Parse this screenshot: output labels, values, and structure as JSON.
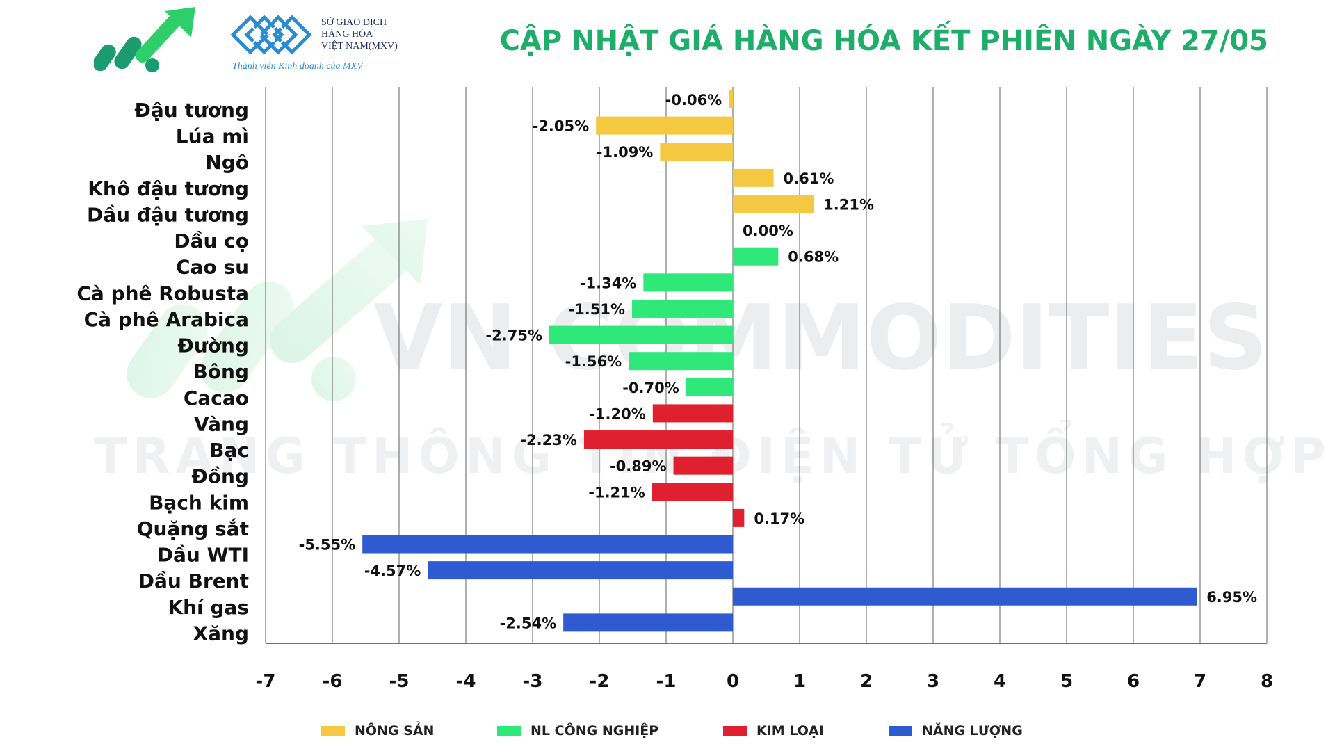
{
  "header": {
    "title": "CẬP NHẬT GIÁ HÀNG HÓA KẾT PHIÊN NGÀY 27/05",
    "partner_line1": "SỞ GIAO DỊCH",
    "partner_line2": "HÀNG HÓA",
    "partner_line3": "VIỆT NAM(MXV)",
    "partner_tagline": "Thành viên Kinh doanh của MXV",
    "brand_color": "#1fae6a"
  },
  "watermark": {
    "line1": "VN COMMODITIES",
    "line2": "TRANG THÔNG TIN ĐIỆN TỬ TỔNG HỢP"
  },
  "chart_data": {
    "type": "bar",
    "orientation": "horizontal",
    "xlim": [
      -7,
      8
    ],
    "x_ticks": [
      "-7",
      "-6",
      "-5",
      "-4",
      "-3",
      "-2",
      "-1",
      "0",
      "1",
      "2",
      "3",
      "4",
      "5",
      "6",
      "7",
      "8"
    ],
    "grid": true,
    "legend_position": "bottom",
    "categories": [
      "Đậu tương",
      "Lúa mì",
      "Ngô",
      "Khô đậu tương",
      "Dầu đậu tương",
      "Dầu cọ",
      "Cao su",
      "Cà phê Robusta",
      "Cà phê Arabica",
      "Đường",
      "Bông",
      "Cacao",
      "Vàng",
      "Bạc",
      "Đồng",
      "Bạch kim",
      "Quặng sắt",
      "Dầu WTI",
      "Dầu Brent",
      "Khí gas",
      "Xăng"
    ],
    "values": [
      -0.06,
      -2.05,
      -1.09,
      0.61,
      1.21,
      0.0,
      0.68,
      -1.34,
      -1.51,
      -2.75,
      -1.56,
      -0.7,
      -1.2,
      -2.23,
      -0.89,
      -1.21,
      0.17,
      -5.55,
      -4.57,
      6.95,
      -2.54
    ],
    "value_labels": [
      "-0.06%",
      "-2.05%",
      "-1.09%",
      "0.61%",
      "1.21%",
      "0.00%",
      "0.68%",
      "-1.34%",
      "-1.51%",
      "-2.75%",
      "-1.56%",
      "-0.70%",
      "-1.20%",
      "-2.23%",
      "-0.89%",
      "-1.21%",
      "0.17%",
      "-5.55%",
      "-4.57%",
      "6.95%",
      "-2.54%"
    ],
    "groups": [
      0,
      0,
      0,
      0,
      0,
      0,
      1,
      1,
      1,
      1,
      1,
      1,
      2,
      2,
      2,
      2,
      2,
      3,
      3,
      3,
      3
    ],
    "series": [
      {
        "name": "NÔNG SẢN",
        "color": "#f5c842"
      },
      {
        "name": "NL CÔNG NGHIỆP",
        "color": "#2ee87a"
      },
      {
        "name": "KIM LOẠI",
        "color": "#e0202e"
      },
      {
        "name": "NĂNG LƯỢNG",
        "color": "#2e5bd0"
      }
    ]
  }
}
